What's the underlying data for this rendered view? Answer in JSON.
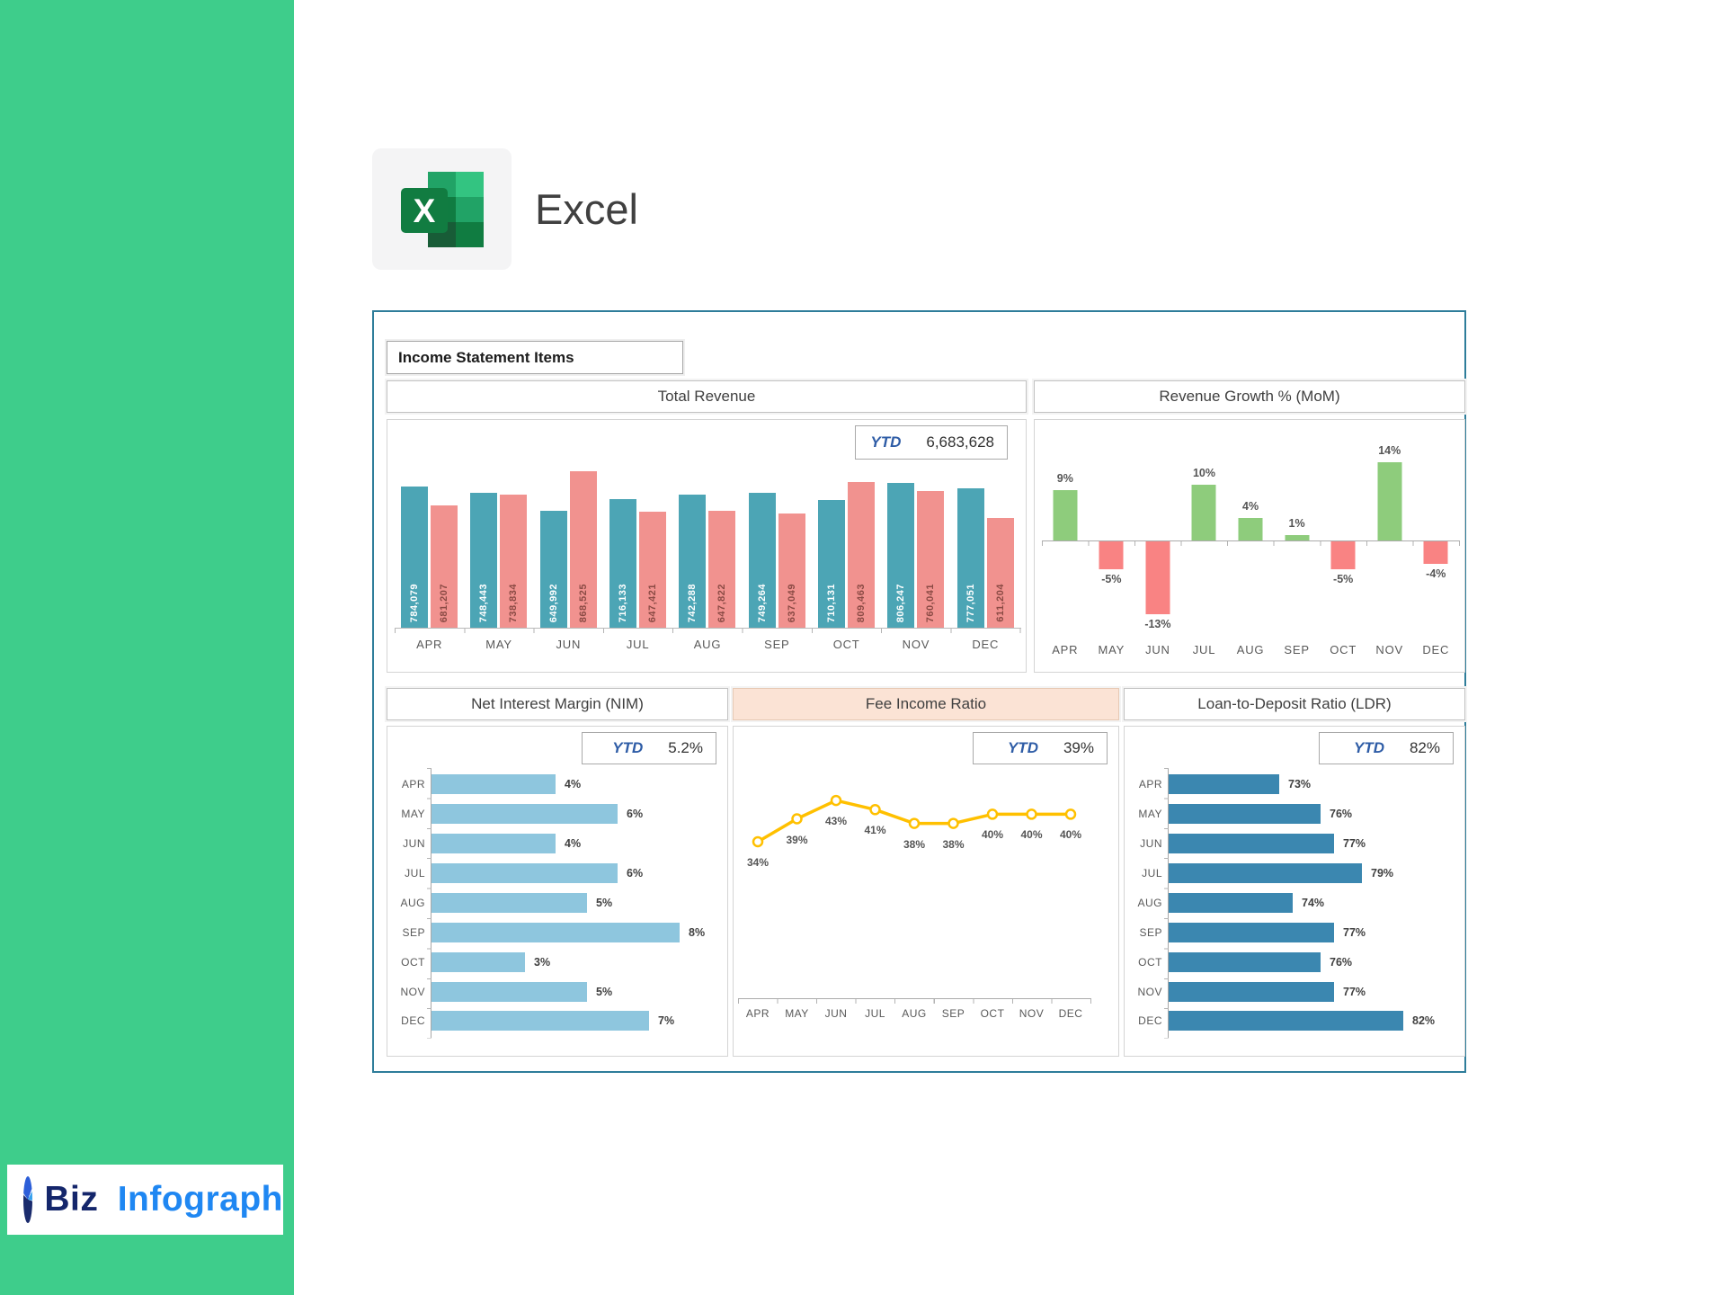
{
  "app": {
    "name": "Excel"
  },
  "brand": {
    "word1": "Biz",
    "word2": "Infograph"
  },
  "dashboard": {
    "section_title": "Income Statement Items"
  },
  "colors": {
    "sidebar_green": "#3ecd8b",
    "dashboard_border": "#2e7d9a",
    "revenue_series1": "#4ca5b5",
    "revenue_series2": "#f1928f",
    "growth_positive": "#8ecc7c",
    "growth_negative": "#f98383",
    "nim_bar": "#8ec6de",
    "fee_line": "#ffc000",
    "ldr_bar": "#3b87b0",
    "ytd_label_blue": "#2e5ca6",
    "fee_header_bg": "#fbe3d5"
  },
  "chart_data": [
    {
      "type": "bar",
      "title": "Total Revenue",
      "ytd_label": "YTD",
      "ytd_value": "6,683,628",
      "categories": [
        "APR",
        "MAY",
        "JUN",
        "JUL",
        "AUG",
        "SEP",
        "OCT",
        "NOV",
        "DEC"
      ],
      "series": [
        {
          "name": "series-1",
          "color": "#4ca5b5",
          "label_color": "#ffffff",
          "values": [
            784079,
            748443,
            649992,
            716133,
            742288,
            749264,
            710131,
            806247,
            777051
          ],
          "labels": [
            "784,079",
            "748,443",
            "649,992",
            "716,133",
            "742,288",
            "749,264",
            "710,131",
            "806,247",
            "777,051"
          ]
        },
        {
          "name": "series-2",
          "color": "#f1928f",
          "label_color": "#8a4a44",
          "values": [
            681207,
            738834,
            868525,
            647421,
            647822,
            637049,
            809463,
            760041,
            611204
          ],
          "labels": [
            "681,207",
            "738,834",
            "868,525",
            "647,421",
            "647,822",
            "637,049",
            "809,463",
            "760,041",
            "611,204"
          ]
        }
      ],
      "ylim": [
        0,
        900000
      ],
      "grid": false,
      "legend": "none"
    },
    {
      "type": "bar",
      "title": "Revenue Growth % (MoM)",
      "categories": [
        "APR",
        "MAY",
        "JUN",
        "JUL",
        "AUG",
        "SEP",
        "OCT",
        "NOV",
        "DEC"
      ],
      "values": [
        9,
        -5,
        -13,
        10,
        4,
        1,
        -5,
        14,
        -4
      ],
      "labels": [
        "9%",
        "-5%",
        "-13%",
        "10%",
        "4%",
        "1%",
        "-5%",
        "14%",
        "-4%"
      ],
      "positive_color": "#8ecc7c",
      "negative_color": "#f98383",
      "ylim": [
        -15,
        15
      ],
      "grid": false
    },
    {
      "type": "bar",
      "orientation": "horizontal",
      "title": "Net Interest Margin (NIM)",
      "ytd_label": "YTD",
      "ytd_value": "5.2%",
      "categories": [
        "APR",
        "MAY",
        "JUN",
        "JUL",
        "AUG",
        "SEP",
        "OCT",
        "NOV",
        "DEC"
      ],
      "values": [
        4,
        6,
        4,
        6,
        5,
        8,
        3,
        5,
        7
      ],
      "labels": [
        "4%",
        "6%",
        "4%",
        "6%",
        "5%",
        "8%",
        "3%",
        "5%",
        "7%"
      ],
      "color": "#8ec6de",
      "xlim": [
        0,
        8
      ],
      "grid": false
    },
    {
      "type": "line",
      "title": "Fee Income Ratio",
      "ytd_label": "YTD",
      "ytd_value": "39%",
      "categories": [
        "APR",
        "MAY",
        "JUN",
        "JUL",
        "AUG",
        "SEP",
        "OCT",
        "NOV",
        "DEC"
      ],
      "values": [
        34,
        39,
        43,
        41,
        38,
        38,
        40,
        40,
        40
      ],
      "labels": [
        "34%",
        "39%",
        "43%",
        "41%",
        "38%",
        "38%",
        "40%",
        "40%",
        "40%"
      ],
      "color": "#ffc000",
      "marker": "circle-open",
      "grid": false
    },
    {
      "type": "bar",
      "orientation": "horizontal",
      "title": "Loan-to-Deposit Ratio (LDR)",
      "ytd_label": "YTD",
      "ytd_value": "82%",
      "categories": [
        "APR",
        "MAY",
        "JUN",
        "JUL",
        "AUG",
        "SEP",
        "OCT",
        "NOV",
        "DEC"
      ],
      "values": [
        73,
        76,
        77,
        79,
        74,
        77,
        76,
        77,
        82
      ],
      "labels": [
        "73%",
        "76%",
        "77%",
        "79%",
        "74%",
        "77%",
        "76%",
        "77%",
        "82%"
      ],
      "color": "#3b87b0",
      "xlim": [
        65,
        85
      ],
      "grid": false
    }
  ]
}
